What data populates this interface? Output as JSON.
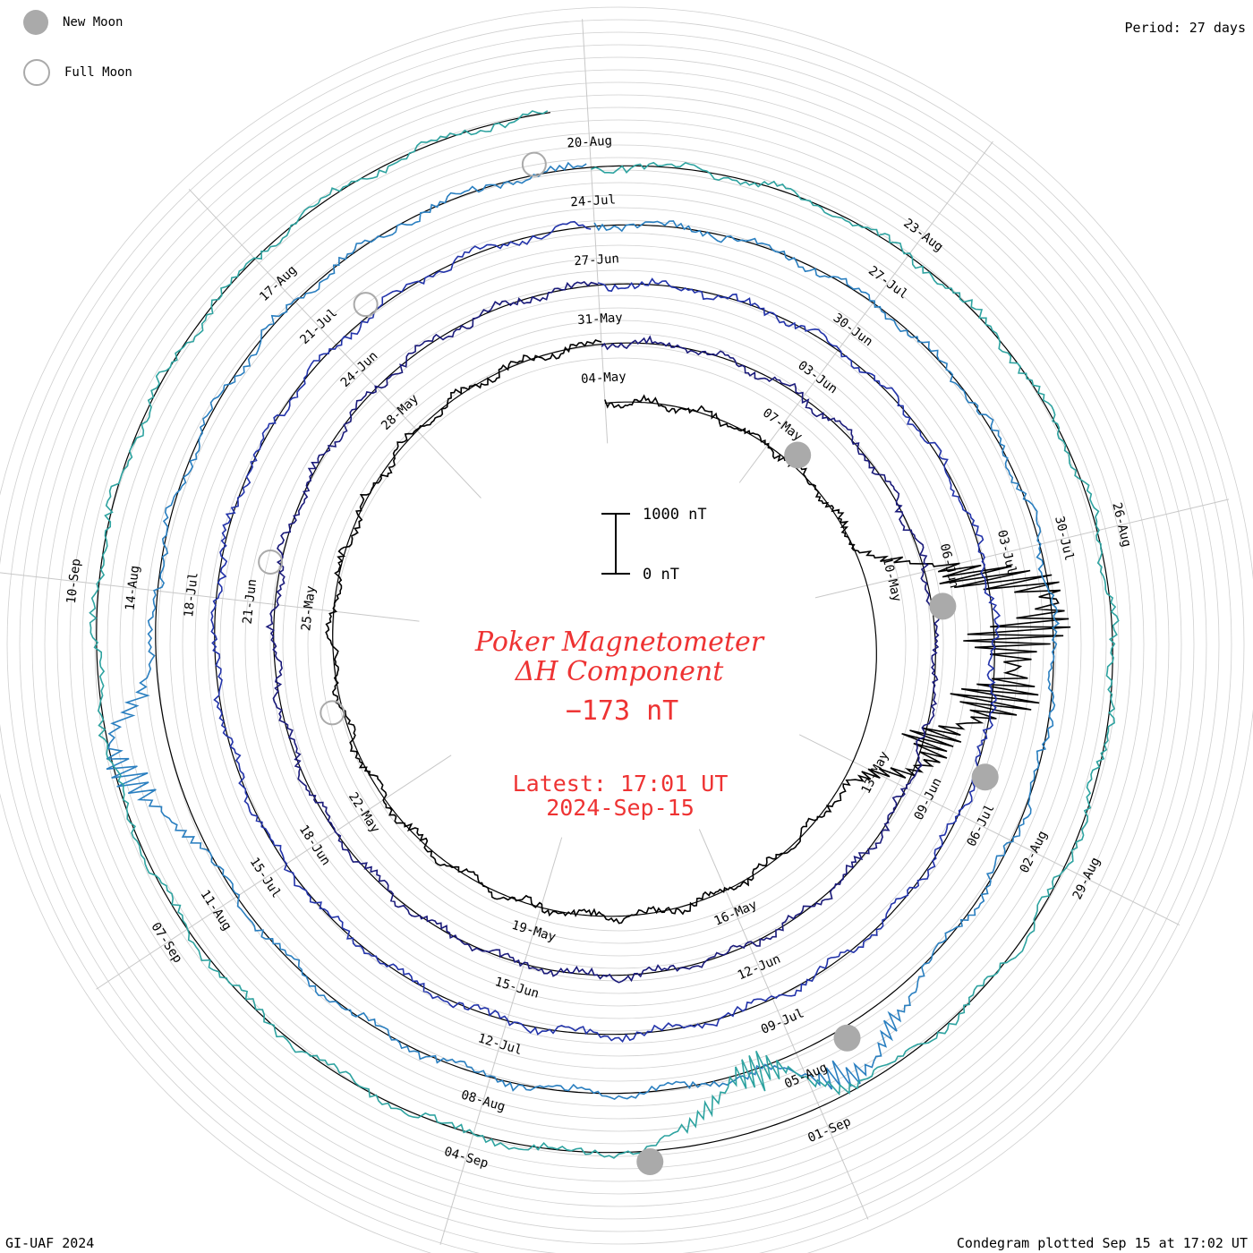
{
  "legend": {
    "new_moon_label": "New Moon",
    "full_moon_label": "Full Moon",
    "new_moon_color": "#aaaaaa",
    "full_moon_color": "#aaaaaa"
  },
  "header": {
    "period": "Period: 27 days"
  },
  "footer": {
    "credit": "GI-UAF 2024",
    "plotted": "Condegram plotted Sep 15 at 17:02 UT"
  },
  "center": {
    "title_line1": "Poker Magnetometer",
    "title_line2": "ΔH Component",
    "value": "−173 nT",
    "latest": "Latest: 17:01 UT",
    "date": "2024-Sep-15",
    "text_color": "#ee3333",
    "scale_top_label": "1000 nT",
    "scale_bottom_label": "0 nT"
  },
  "chart_data": {
    "type": "line",
    "projection": "polar condegram (spiral, one revolution per period)",
    "period_days": 27,
    "series_colors": [
      "#000000",
      "#1a1a7a",
      "#2233aa",
      "#2a7fc0",
      "#2ea3a0",
      "#6cbf3c",
      "#a8b51e",
      "#b88a18",
      "#c25a10",
      "#c01010"
    ],
    "date_labels": [
      {
        "label": "04-May",
        "day": 0
      },
      {
        "label": "07-May",
        "day": 3
      },
      {
        "label": "10-May",
        "day": 6
      },
      {
        "label": "13-May",
        "day": 9
      },
      {
        "label": "16-May",
        "day": 12
      },
      {
        "label": "19-May",
        "day": 15
      },
      {
        "label": "22-May",
        "day": 18
      },
      {
        "label": "25-May",
        "day": 21
      },
      {
        "label": "28-May",
        "day": 24
      },
      {
        "label": "31-May",
        "day": 27
      },
      {
        "label": "03-Jun",
        "day": 30
      },
      {
        "label": "06-Jun",
        "day": 33
      },
      {
        "label": "09-Jun",
        "day": 36
      },
      {
        "label": "12-Jun",
        "day": 39
      },
      {
        "label": "15-Jun",
        "day": 42
      },
      {
        "label": "18-Jun",
        "day": 45
      },
      {
        "label": "21-Jun",
        "day": 48
      },
      {
        "label": "24-Jun",
        "day": 51
      },
      {
        "label": "27-Jun",
        "day": 54
      },
      {
        "label": "30-Jun",
        "day": 57
      },
      {
        "label": "03-Jul",
        "day": 60
      },
      {
        "label": "06-Jul",
        "day": 63
      },
      {
        "label": "09-Jul",
        "day": 66
      },
      {
        "label": "12-Jul",
        "day": 69
      },
      {
        "label": "15-Jul",
        "day": 72
      },
      {
        "label": "18-Jul",
        "day": 75
      },
      {
        "label": "21-Jul",
        "day": 78
      },
      {
        "label": "24-Jul",
        "day": 81
      },
      {
        "label": "27-Jul",
        "day": 84
      },
      {
        "label": "30-Jul",
        "day": 87
      },
      {
        "label": "02-Aug",
        "day": 90
      },
      {
        "label": "05-Aug",
        "day": 93
      },
      {
        "label": "08-Aug",
        "day": 96
      },
      {
        "label": "11-Aug",
        "day": 99
      },
      {
        "label": "14-Aug",
        "day": 102
      },
      {
        "label": "17-Aug",
        "day": 105
      },
      {
        "label": "20-Aug",
        "day": 108
      },
      {
        "label": "23-Aug",
        "day": 111
      },
      {
        "label": "26-Aug",
        "day": 114
      },
      {
        "label": "29-Aug",
        "day": 117
      },
      {
        "label": "01-Sep",
        "day": 120
      },
      {
        "label": "04-Sep",
        "day": 123
      },
      {
        "label": "07-Sep",
        "day": 126
      },
      {
        "label": "10-Sep",
        "day": 129
      }
    ],
    "new_moons": [
      "2024-05-07",
      "2024-06-06",
      "2024-07-05",
      "2024-08-04",
      "2024-09-02"
    ],
    "full_moons": [
      "2024-05-23",
      "2024-06-21",
      "2024-07-21",
      "2024-08-19"
    ],
    "disturbances_nT": [
      {
        "date": "2024-05-10",
        "min": -2400
      },
      {
        "date": "2024-05-11",
        "min": -1800
      },
      {
        "date": "2024-05-12",
        "min": -900
      },
      {
        "date": "2024-08-04",
        "min": -700
      },
      {
        "date": "2024-08-12",
        "min": -800
      },
      {
        "date": "2024-09-01",
        "max": 900
      }
    ],
    "latest_value_nT": -173,
    "scale_nT": [
      0,
      1000
    ]
  }
}
